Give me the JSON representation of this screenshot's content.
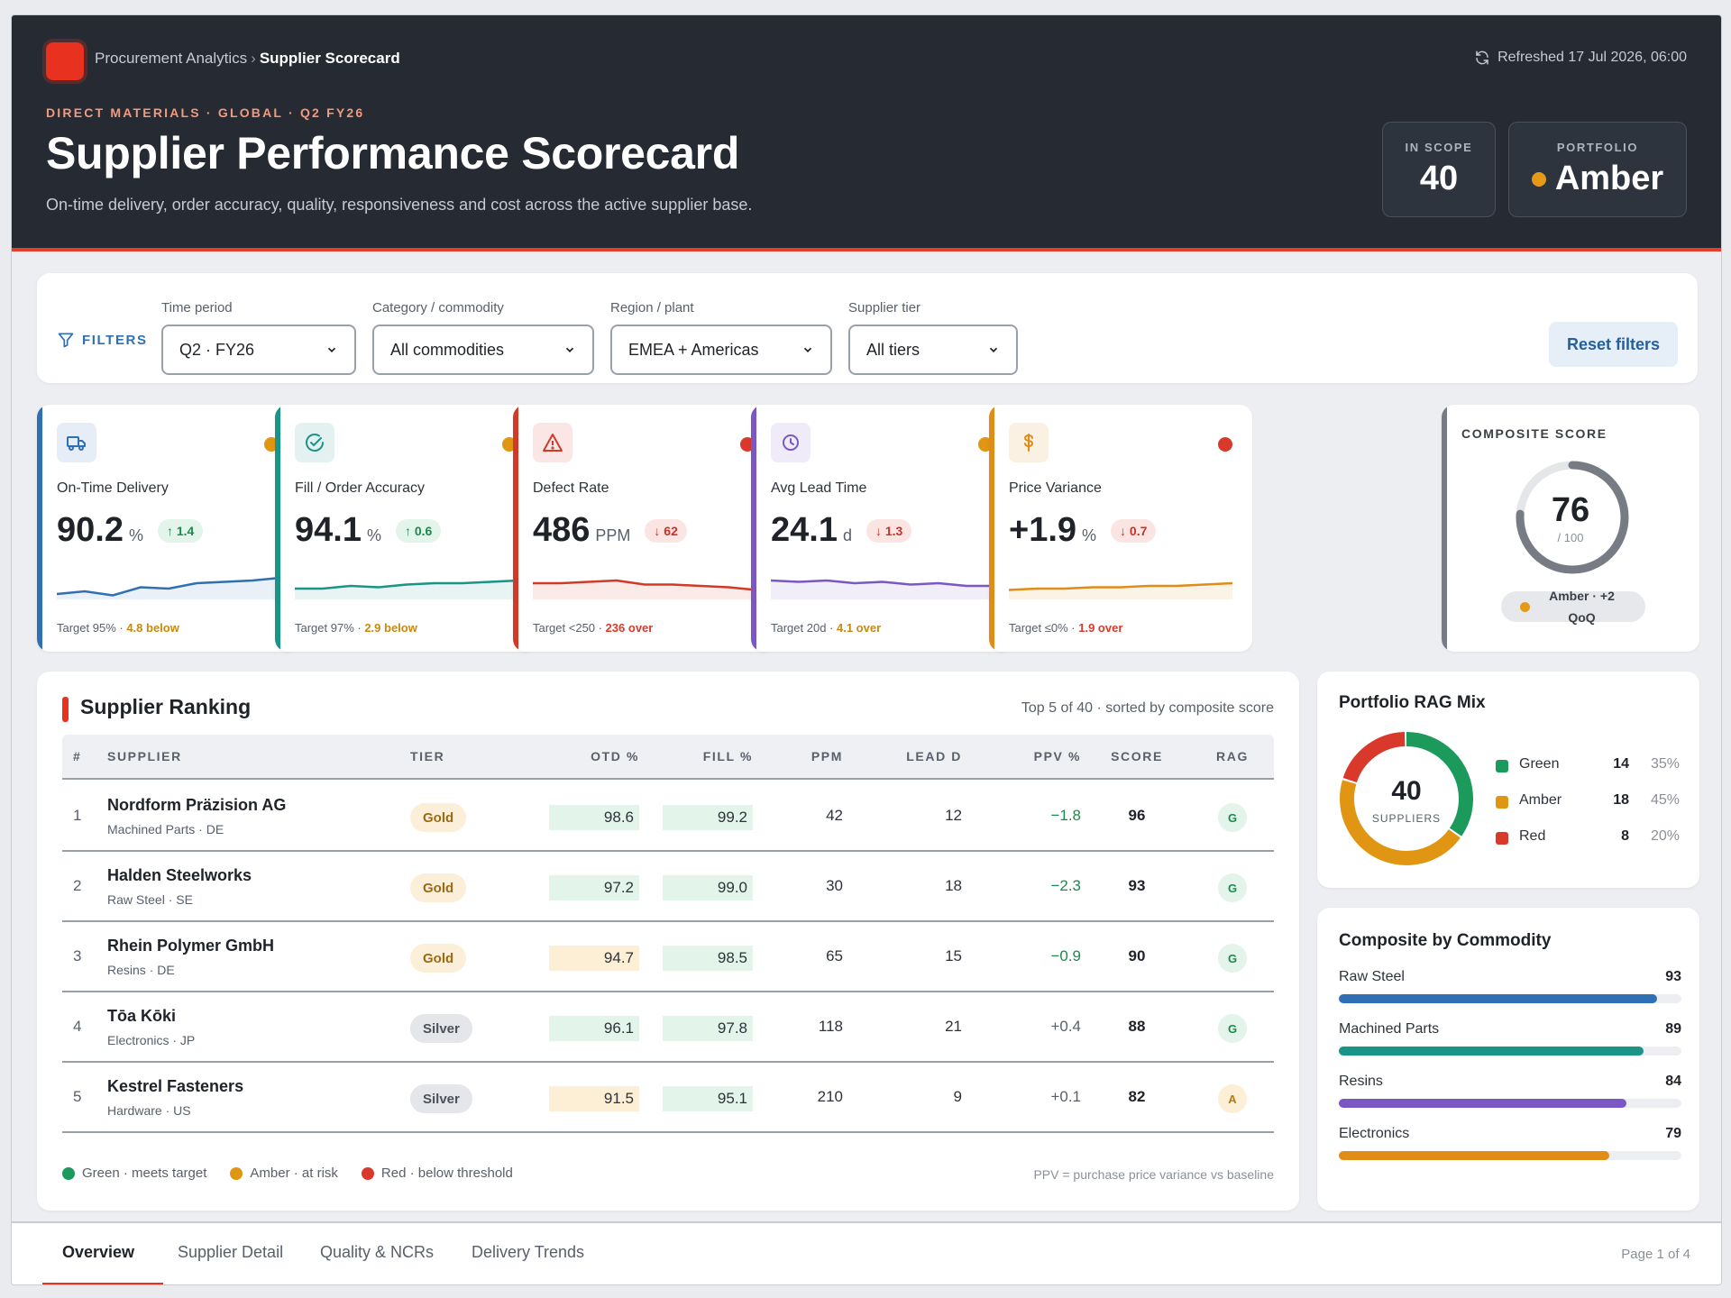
{
  "header": {
    "breadcrumb_parent": "Procurement Analytics",
    "breadcrumb_sep": "›",
    "breadcrumb_current": "Supplier Scorecard",
    "refreshed": "Refreshed 17 Jul 2026, 06:00",
    "eyebrow": "DIRECT MATERIALS · GLOBAL · Q2 FY26",
    "title": "Supplier Performance Scorecard",
    "subtitle": "On-time delivery, order accuracy, quality, responsiveness and cost across the active supplier base.",
    "in_scope_label": "IN SCOPE",
    "in_scope_value": "40",
    "portfolio_label": "PORTFOLIO",
    "portfolio_value": "Amber",
    "accent": "#e8321f"
  },
  "filters": {
    "label": "FILTERS",
    "time_period": {
      "label": "Time period",
      "value": "Q2 · FY26"
    },
    "category": {
      "label": "Category / commodity",
      "value": "All commodities"
    },
    "region": {
      "label": "Region / plant",
      "value": "EMEA + Americas"
    },
    "tier": {
      "label": "Supplier tier",
      "value": "All tiers"
    },
    "reset": "Reset filters"
  },
  "kpis": [
    {
      "name": "On-Time Delivery",
      "value": "90.2",
      "unit": "%",
      "delta": "↑ 1.4",
      "target": "Target 95% · ",
      "target_gap": "4.8 below",
      "rag": "amber",
      "color": "#2f6fb3",
      "trend": [
        16,
        14,
        17,
        11,
        12,
        8,
        7,
        6,
        4
      ]
    },
    {
      "name": "Fill / Order Accuracy",
      "value": "94.1",
      "unit": "%",
      "delta": "↑ 0.6",
      "target": "Target 97% · ",
      "target_gap": "2.9 below",
      "rag": "amber",
      "color": "#1a9486",
      "trend": [
        12,
        12,
        10,
        11,
        9,
        8,
        8,
        7,
        6
      ]
    },
    {
      "name": "Defect Rate",
      "value": "486",
      "unit": "PPM",
      "delta": "↓ 62",
      "target": "Target <250 · ",
      "target_gap": "236 over",
      "rag": "red",
      "color": "#d23a28",
      "trend": [
        8,
        8,
        7,
        6,
        9,
        9,
        10,
        11,
        13
      ]
    },
    {
      "name": "Avg Lead Time",
      "value": "24.1",
      "unit": "d",
      "delta": "↓ 1.3",
      "target": "Target 20d · ",
      "target_gap": "4.1 over",
      "rag": "amber",
      "color": "#7b57c4",
      "trend": [
        6,
        7,
        6,
        8,
        7,
        9,
        8,
        10,
        10
      ]
    },
    {
      "name": "Price Variance",
      "value": "+1.9",
      "unit": "%",
      "delta": "↓ 0.7",
      "target": "Target ≤0% · ",
      "target_gap": "1.9 over",
      "rag": "red",
      "color": "#e08c16",
      "trend": [
        13,
        12,
        12,
        11,
        11,
        10,
        10,
        9,
        8
      ]
    }
  ],
  "composite": {
    "label": "COMPOSITE SCORE",
    "score": 76,
    "max": "/ 100",
    "status": "Amber · +2 QoQ"
  },
  "ranking": {
    "title": "Supplier Ranking",
    "meta": "Top 5 of 40 · sorted by composite score",
    "columns": {
      "rank": "#",
      "supplier": "SUPPLIER",
      "tier": "TIER",
      "otd": "OTD %",
      "fill": "FILL %",
      "ppm": "PPM",
      "lead": "LEAD D",
      "ppv": "PPV %",
      "score": "SCORE",
      "rag": "RAG"
    },
    "rows": [
      {
        "rank": "1",
        "name": "Nordform Präzision AG",
        "sub": "Machined Parts · DE",
        "tier": "Gold",
        "otd": "98.6",
        "fill": "99.2",
        "ppm": "42",
        "lead": "12",
        "ppv": "−1.8",
        "score": "96",
        "rag": "G"
      },
      {
        "rank": "2",
        "name": "Halden Steelworks",
        "sub": "Raw Steel · SE",
        "tier": "Gold",
        "otd": "97.2",
        "fill": "99.0",
        "ppm": "30",
        "lead": "18",
        "ppv": "−2.3",
        "score": "93",
        "rag": "G"
      },
      {
        "rank": "3",
        "name": "Rhein Polymer GmbH",
        "sub": "Resins · DE",
        "tier": "Gold",
        "otd": "94.7",
        "fill": "98.5",
        "ppm": "65",
        "lead": "15",
        "ppv": "−0.9",
        "score": "90",
        "rag": "G"
      },
      {
        "rank": "4",
        "name": "Tōa Kōki",
        "sub": "Electronics · JP",
        "tier": "Silver",
        "otd": "96.1",
        "fill": "97.8",
        "ppm": "118",
        "lead": "21",
        "ppv": "+0.4",
        "score": "88",
        "rag": "G"
      },
      {
        "rank": "5",
        "name": "Kestrel Fasteners",
        "sub": "Hardware · US",
        "tier": "Silver",
        "otd": "91.5",
        "fill": "95.1",
        "ppm": "210",
        "lead": "9",
        "ppv": "+0.1",
        "score": "82",
        "rag": "A"
      }
    ],
    "legend": {
      "green": "Green · meets target",
      "amber": "Amber · at risk",
      "red": "Red · below threshold"
    },
    "footnote": "PPV = purchase price variance vs baseline"
  },
  "rag_mix": {
    "title": "Portfolio RAG Mix",
    "total": "40",
    "total_label": "SUPPLIERS",
    "items": [
      {
        "name": "Green",
        "count": 14,
        "pct": "35%",
        "color": "#1c9a5c"
      },
      {
        "name": "Amber",
        "count": 18,
        "pct": "45%",
        "color": "#e09612"
      },
      {
        "name": "Red",
        "count": 8,
        "pct": "20%",
        "color": "#d9392b"
      }
    ]
  },
  "commodity": {
    "title": "Composite by Commodity",
    "items": [
      {
        "name": "Raw Steel",
        "value": 93,
        "color": "#2f6fb3"
      },
      {
        "name": "Machined Parts",
        "value": 89,
        "color": "#1a9486"
      },
      {
        "name": "Resins",
        "value": 84,
        "color": "#7b57c4"
      },
      {
        "name": "Electronics",
        "value": 79,
        "color": "#e08c16"
      }
    ]
  },
  "tabs": {
    "items": [
      "Overview",
      "Supplier Detail",
      "Quality & NCRs",
      "Delivery Trends"
    ],
    "page": "Page 1 of 4"
  },
  "colors": {
    "green": "#1c9a5c",
    "amber": "#e09612",
    "red": "#d9392b"
  }
}
